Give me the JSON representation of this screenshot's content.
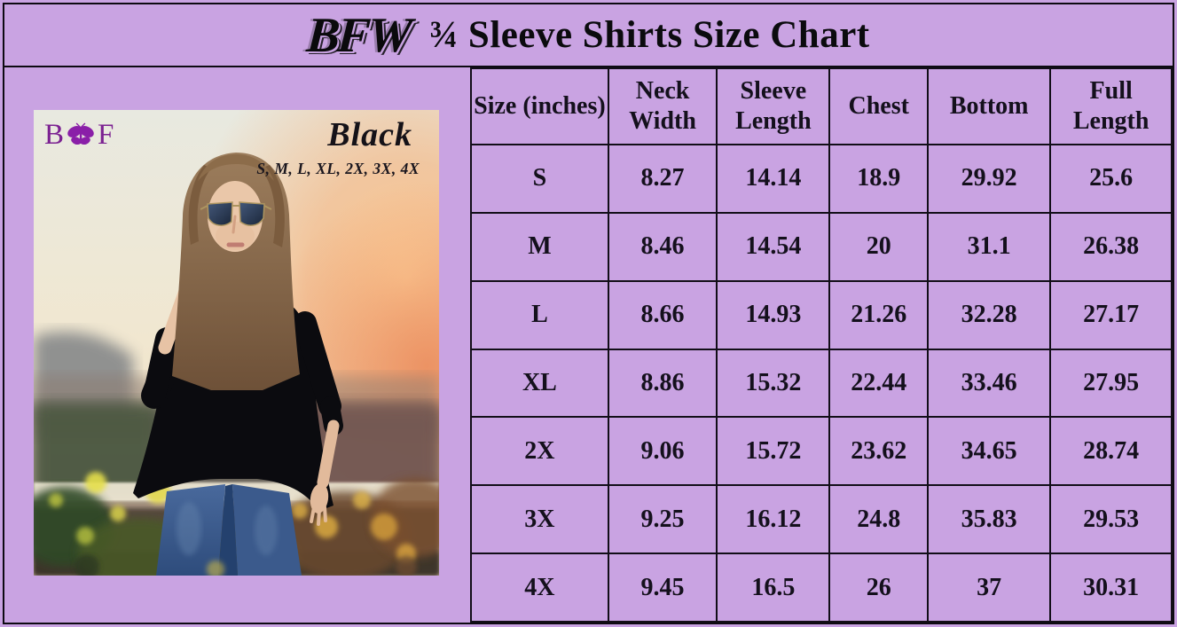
{
  "page": {
    "background_color": "#c9a3e2",
    "border_color": "#0d0a12"
  },
  "header": {
    "brand": "BFW",
    "title": "¾ Sleeve Shirts Size Chart"
  },
  "photo": {
    "logo": {
      "left_letter": "B",
      "right_letter": "F",
      "icon": "butterfly-icon",
      "color": "#8a1fa8"
    },
    "color_name": "Black",
    "available_sizes": "S, M, L, XL, 2X, 3X, 4X"
  },
  "chart_data": {
    "type": "table",
    "title": "BFW ¾ Sleeve Shirts Size Chart",
    "units": "inches",
    "columns": [
      "Size (inches)",
      "Neck Width",
      "Sleeve Length",
      "Chest",
      "Bottom",
      "Full Length"
    ],
    "rows": [
      [
        "S",
        8.27,
        14.14,
        18.9,
        29.92,
        25.6
      ],
      [
        "M",
        8.46,
        14.54,
        20,
        31.1,
        26.38
      ],
      [
        "L",
        8.66,
        14.93,
        21.26,
        32.28,
        27.17
      ],
      [
        "XL",
        8.86,
        15.32,
        22.44,
        33.46,
        27.95
      ],
      [
        "2X",
        9.06,
        15.72,
        23.62,
        34.65,
        28.74
      ],
      [
        "3X",
        9.25,
        16.12,
        24.8,
        35.83,
        29.53
      ],
      [
        "4X",
        9.45,
        16.5,
        26,
        37,
        30.31
      ]
    ]
  }
}
